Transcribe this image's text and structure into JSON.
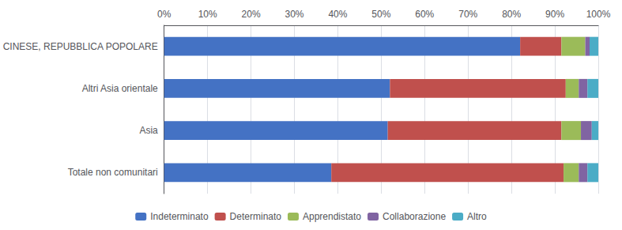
{
  "chart_data": {
    "type": "bar",
    "orientation": "horizontal",
    "stacked": true,
    "categories": [
      "CINESE, REPUBBLICA POPOLARE",
      "Altri Asia orientale",
      "Asia",
      "Totale non comunitari"
    ],
    "series": [
      {
        "name": "Indeterminato",
        "color": "#4472C4",
        "values": [
          82.0,
          52.0,
          51.5,
          38.5
        ]
      },
      {
        "name": "Determinato",
        "color": "#C0504D",
        "values": [
          9.5,
          40.5,
          40.0,
          53.5
        ]
      },
      {
        "name": "Apprendistato",
        "color": "#9BBB59",
        "values": [
          5.5,
          3.0,
          4.5,
          3.5
        ]
      },
      {
        "name": "Collaborazione",
        "color": "#8064A2",
        "values": [
          1.0,
          2.0,
          2.5,
          2.0
        ]
      },
      {
        "name": "Altro",
        "color": "#4BACC6",
        "values": [
          2.0,
          2.5,
          1.5,
          2.5
        ]
      }
    ],
    "xlim": [
      0,
      100
    ],
    "xticks": [
      {
        "value": 0,
        "label": "0%"
      },
      {
        "value": 10,
        "label": "10%"
      },
      {
        "value": 20,
        "label": "20%"
      },
      {
        "value": 30,
        "label": "30%"
      },
      {
        "value": 40,
        "label": "40%"
      },
      {
        "value": 50,
        "label": "50%"
      },
      {
        "value": 60,
        "label": "60%"
      },
      {
        "value": 70,
        "label": "70%"
      },
      {
        "value": 80,
        "label": "80%"
      },
      {
        "value": 90,
        "label": "90%"
      },
      {
        "value": 100,
        "label": "100%"
      }
    ],
    "grid": true,
    "legend": "bottom"
  }
}
